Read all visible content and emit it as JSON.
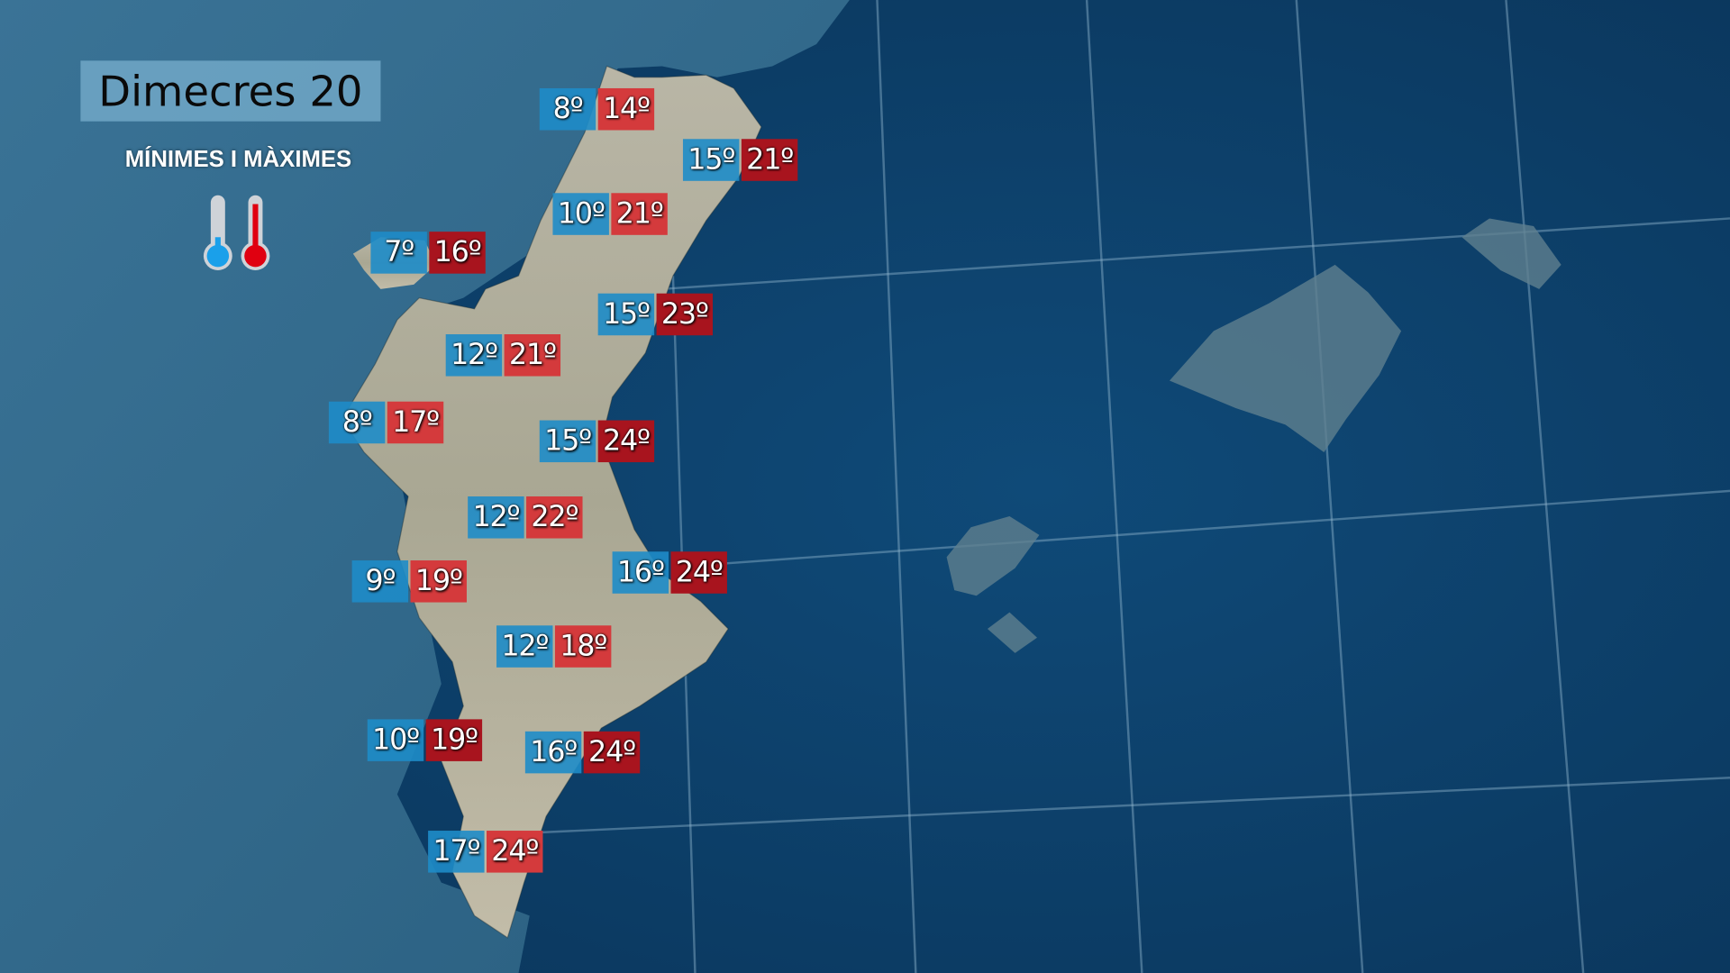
{
  "header": {
    "title": "Dimecres 20",
    "subtitle": "MÍNIMES I MÀXIMES"
  },
  "legend_icons": [
    "thermometer-cold-icon",
    "thermometer-hot-icon"
  ],
  "colors": {
    "min_box": "#1e8cc8",
    "max_light": "#d43a3c",
    "max_dark": "#a8141e",
    "sea": "#0d3f66",
    "land_tint": "#2f6a8e"
  },
  "stations": [
    {
      "min": "8º",
      "max": "14º",
      "tone": "light"
    },
    {
      "min": "15º",
      "max": "21º",
      "tone": "dark"
    },
    {
      "min": "10º",
      "max": "21º",
      "tone": "light"
    },
    {
      "min": "7º",
      "max": "16º",
      "tone": "dark"
    },
    {
      "min": "15º",
      "max": "23º",
      "tone": "dark"
    },
    {
      "min": "12º",
      "max": "21º",
      "tone": "light"
    },
    {
      "min": "8º",
      "max": "17º",
      "tone": "light"
    },
    {
      "min": "15º",
      "max": "24º",
      "tone": "dark"
    },
    {
      "min": "12º",
      "max": "22º",
      "tone": "light"
    },
    {
      "min": "9º",
      "max": "19º",
      "tone": "light"
    },
    {
      "min": "16º",
      "max": "24º",
      "tone": "dark"
    },
    {
      "min": "12º",
      "max": "18º",
      "tone": "light"
    },
    {
      "min": "10º",
      "max": "19º",
      "tone": "dark"
    },
    {
      "min": "16º",
      "max": "24º",
      "tone": "dark"
    },
    {
      "min": "17º",
      "max": "24º",
      "tone": "light"
    }
  ]
}
